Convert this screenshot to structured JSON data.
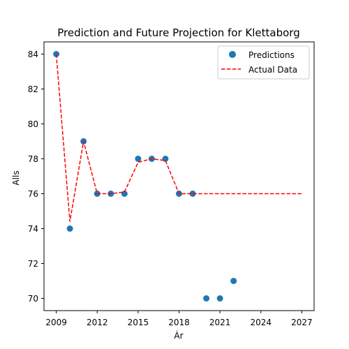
{
  "chart_data": {
    "type": "scatter",
    "title": "Prediction and Future Projection for Klettaborg",
    "xlabel": "Ár",
    "ylabel": "Alls",
    "xlim": [
      2008.1,
      2027.9
    ],
    "ylim": [
      69.3,
      84.7
    ],
    "xticks": [
      2009,
      2012,
      2015,
      2018,
      2021,
      2024,
      2027
    ],
    "yticks": [
      70,
      72,
      74,
      76,
      78,
      80,
      82,
      84
    ],
    "grid": false,
    "legend_position": "top-right",
    "series": [
      {
        "name": "Predictions",
        "kind": "scatter",
        "color": "#1f77b4",
        "points": [
          {
            "x": 2009,
            "y": 84
          },
          {
            "x": 2010,
            "y": 74
          },
          {
            "x": 2011,
            "y": 79
          },
          {
            "x": 2012,
            "y": 76
          },
          {
            "x": 2013,
            "y": 76
          },
          {
            "x": 2014,
            "y": 76
          },
          {
            "x": 2015,
            "y": 78
          },
          {
            "x": 2016,
            "y": 78
          },
          {
            "x": 2017,
            "y": 78
          },
          {
            "x": 2018,
            "y": 76
          },
          {
            "x": 2019,
            "y": 76
          },
          {
            "x": 2020,
            "y": 70
          },
          {
            "x": 2021,
            "y": 70
          },
          {
            "x": 2022,
            "y": 71
          }
        ]
      },
      {
        "name": "Actual Data",
        "kind": "line",
        "style": "dashed",
        "color": "#ff0000",
        "points": [
          {
            "x": 2009,
            "y": 84
          },
          {
            "x": 2010,
            "y": 74.4
          },
          {
            "x": 2011,
            "y": 79
          },
          {
            "x": 2012,
            "y": 76
          },
          {
            "x": 2013,
            "y": 76
          },
          {
            "x": 2014,
            "y": 76.1
          },
          {
            "x": 2015,
            "y": 77.8
          },
          {
            "x": 2016,
            "y": 78
          },
          {
            "x": 2017,
            "y": 77.9
          },
          {
            "x": 2018,
            "y": 76
          },
          {
            "x": 2019,
            "y": 76
          },
          {
            "x": 2020,
            "y": 76
          },
          {
            "x": 2021,
            "y": 76
          },
          {
            "x": 2022,
            "y": 76
          },
          {
            "x": 2023,
            "y": 76
          },
          {
            "x": 2024,
            "y": 76
          },
          {
            "x": 2025,
            "y": 76
          },
          {
            "x": 2026,
            "y": 76
          },
          {
            "x": 2027,
            "y": 76
          }
        ]
      }
    ]
  }
}
